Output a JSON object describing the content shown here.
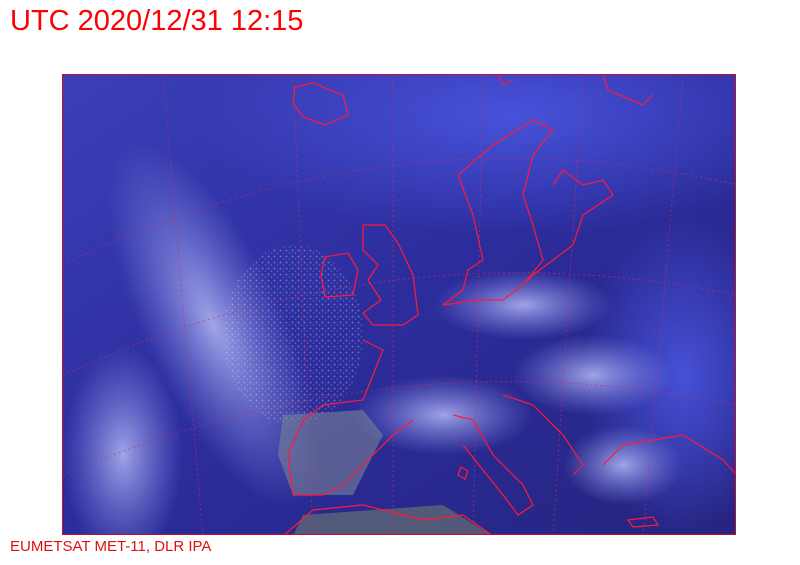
{
  "header": {
    "title": "UTC 2020/12/31 12:15"
  },
  "footer": {
    "credit": "EUMETSAT MET-11, DLR IPA"
  },
  "map": {
    "type": "satellite-image",
    "region": "Europe / North Atlantic",
    "colors": {
      "ocean": "#25238f",
      "cloud": "#9aa0f0",
      "land": "#6f7a96",
      "coastline": "#ff1a3a",
      "graticule": "#c83060"
    }
  }
}
